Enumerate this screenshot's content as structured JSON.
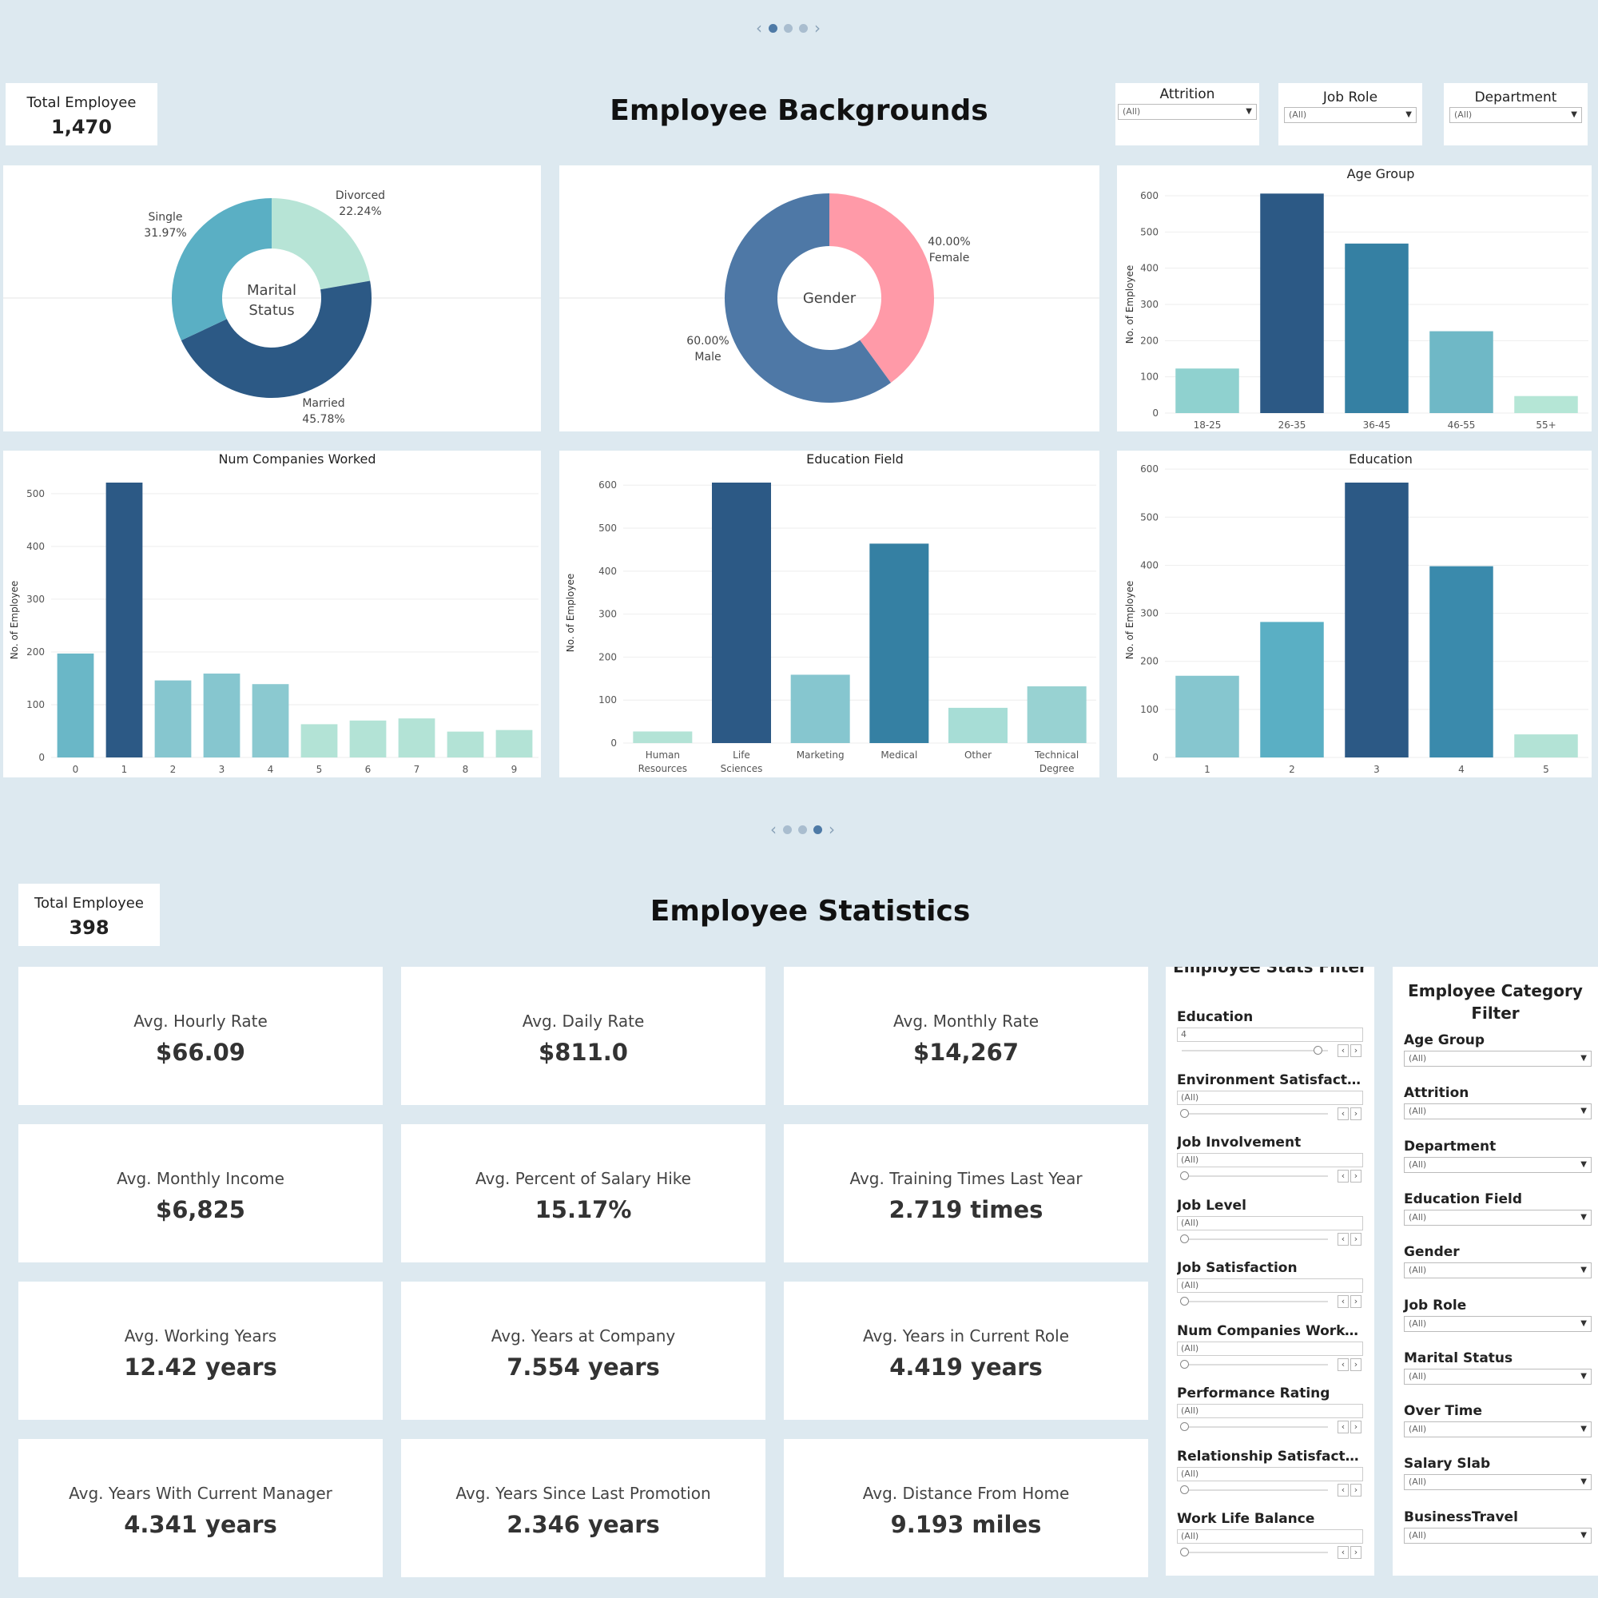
{
  "page1": {
    "title": "Employee Backgrounds",
    "total_label": "Total Employee",
    "total_value": "1,470",
    "filters": [
      {
        "label": "Attrition",
        "value": "(All)"
      },
      {
        "label": "Job Role",
        "value": "(All)"
      },
      {
        "label": "Department",
        "value": "(All)"
      }
    ]
  },
  "page2": {
    "title": "Employee Statistics",
    "total_label": "Total Employee",
    "total_value": "398",
    "kpis": [
      {
        "label": "Avg. Hourly Rate",
        "value": "$66.09"
      },
      {
        "label": "Avg. Daily Rate",
        "value": "$811.0"
      },
      {
        "label": "Avg. Monthly Rate",
        "value": "$14,267"
      },
      {
        "label": "Avg. Monthly Income",
        "value": "$6,825"
      },
      {
        "label": "Avg. Percent of Salary Hike",
        "value": "15.17%"
      },
      {
        "label": "Avg. Training Times Last Year",
        "value": "2.719 times"
      },
      {
        "label": "Avg. Working Years",
        "value": "12.42 years"
      },
      {
        "label": "Avg. Years at Company",
        "value": "7.554 years"
      },
      {
        "label": "Avg. Years in Current Role",
        "value": "4.419 years"
      },
      {
        "label": "Avg. Years With Current Manager",
        "value": "4.341 years"
      },
      {
        "label": "Avg. Years Since Last Promotion",
        "value": "2.346 years"
      },
      {
        "label": "Avg. Distance From Home",
        "value": "9.193 miles"
      }
    ],
    "stats_filter": {
      "title": "Employee Stats Filter",
      "items": [
        {
          "label": "Education",
          "value": "4"
        },
        {
          "label": "Environment Satisfacti...",
          "value": "(All)"
        },
        {
          "label": "Job Involvement",
          "value": "(All)"
        },
        {
          "label": "Job Level",
          "value": "(All)"
        },
        {
          "label": "Job Satisfaction",
          "value": "(All)"
        },
        {
          "label": "Num Companies Worked",
          "value": "(All)"
        },
        {
          "label": "Performance Rating",
          "value": "(All)"
        },
        {
          "label": "Relationship Satisfacti...",
          "value": "(All)"
        },
        {
          "label": "Work Life Balance",
          "value": "(All)"
        }
      ]
    },
    "category_filter": {
      "title": "Employee Category Filter",
      "items": [
        {
          "label": "Age Group",
          "value": "(All)"
        },
        {
          "label": "Attrition",
          "value": "(All)"
        },
        {
          "label": "Department",
          "value": "(All)"
        },
        {
          "label": "Education Field",
          "value": "(All)"
        },
        {
          "label": "Gender",
          "value": "(All)"
        },
        {
          "label": "Job Role",
          "value": "(All)"
        },
        {
          "label": "Marital Status",
          "value": "(All)"
        },
        {
          "label": "Over Time",
          "value": "(All)"
        },
        {
          "label": "Salary Slab",
          "value": "(All)"
        },
        {
          "label": "BusinessTravel",
          "value": "(All)"
        }
      ]
    }
  },
  "colors": {
    "background": "#dde9f0",
    "dark_blue": "#2c5985",
    "mid_blue": "#3580a3",
    "teal": "#5aafc4",
    "light_teal": "#89c7cf",
    "pale_teal": "#b1e0d9",
    "pink": "#ff9aa8",
    "gender_blue": "#4e78a6"
  },
  "chart_data": [
    {
      "type": "pie",
      "title": "",
      "center_label": [
        "Marital",
        "Status"
      ],
      "slices": [
        {
          "name": "Divorced",
          "value": 22.24,
          "label": "22.24%",
          "color": "#b7e4d6"
        },
        {
          "name": "Married",
          "value": 45.78,
          "label": "45.78%",
          "color": "#2c5985"
        },
        {
          "name": "Single",
          "value": 31.97,
          "label": "31.97%",
          "color": "#5aafc4"
        }
      ]
    },
    {
      "type": "pie",
      "title": "",
      "center_label": [
        "Gender"
      ],
      "slices": [
        {
          "name": "Female",
          "value": 40.0,
          "label": "40.00%",
          "color": "#ff9aa8"
        },
        {
          "name": "Male",
          "value": 60.0,
          "label": "60.00%",
          "color": "#4e78a6"
        }
      ]
    },
    {
      "type": "bar",
      "title": "Age Group",
      "ylabel": "No. of Employee",
      "ylim": [
        0,
        600
      ],
      "yticks": [
        0,
        100,
        200,
        300,
        400,
        500,
        600
      ],
      "categories": [
        "18-25",
        "26-35",
        "36-45",
        "46-55",
        "55+"
      ],
      "values": [
        123,
        606,
        468,
        226,
        47
      ],
      "colors": [
        "#8fd1cf",
        "#2c5985",
        "#3580a3",
        "#6fb8c6",
        "#b5e6d6"
      ]
    },
    {
      "type": "bar",
      "title": "Num Companies Worked",
      "ylabel": "No. of Employee",
      "ylim": [
        0,
        521
      ],
      "yticks": [
        0,
        100,
        200,
        300,
        400,
        500
      ],
      "categories": [
        "0",
        "1",
        "2",
        "3",
        "4",
        "5",
        "6",
        "7",
        "8",
        "9"
      ],
      "values": [
        197,
        521,
        146,
        159,
        139,
        63,
        70,
        74,
        49,
        52
      ],
      "colors": [
        "#6ab7c7",
        "#2c5985",
        "#86c6cf",
        "#86c6cf",
        "#8bc9d0",
        "#b3e3d6",
        "#b3e3d6",
        "#b3e3d6",
        "#b3e3d6",
        "#b3e3d6"
      ]
    },
    {
      "type": "bar",
      "title": "Education Field",
      "ylabel": "No. of Employee",
      "ylim": [
        0,
        606
      ],
      "yticks": [
        0,
        100,
        200,
        300,
        400,
        500,
        600
      ],
      "categories": [
        "Human Resources",
        "Life Sciences",
        "Marketing",
        "Medical",
        "Other",
        "Technical Degree"
      ],
      "values": [
        27,
        606,
        159,
        464,
        82,
        132
      ],
      "colors": [
        "#b3e3d6",
        "#2c5985",
        "#86c6cf",
        "#3580a3",
        "#a7ddd6",
        "#98d2d2"
      ]
    },
    {
      "type": "bar",
      "title": "Education",
      "ylabel": "No. of Employee",
      "ylim": [
        0,
        572
      ],
      "yticks": [
        0,
        100,
        200,
        300,
        400,
        500,
        600
      ],
      "categories": [
        "1",
        "2",
        "3",
        "4",
        "5"
      ],
      "values": [
        170,
        282,
        572,
        398,
        48
      ],
      "colors": [
        "#86c6cf",
        "#5aafc4",
        "#2c5985",
        "#3a8aac",
        "#b3e3d6"
      ]
    }
  ]
}
